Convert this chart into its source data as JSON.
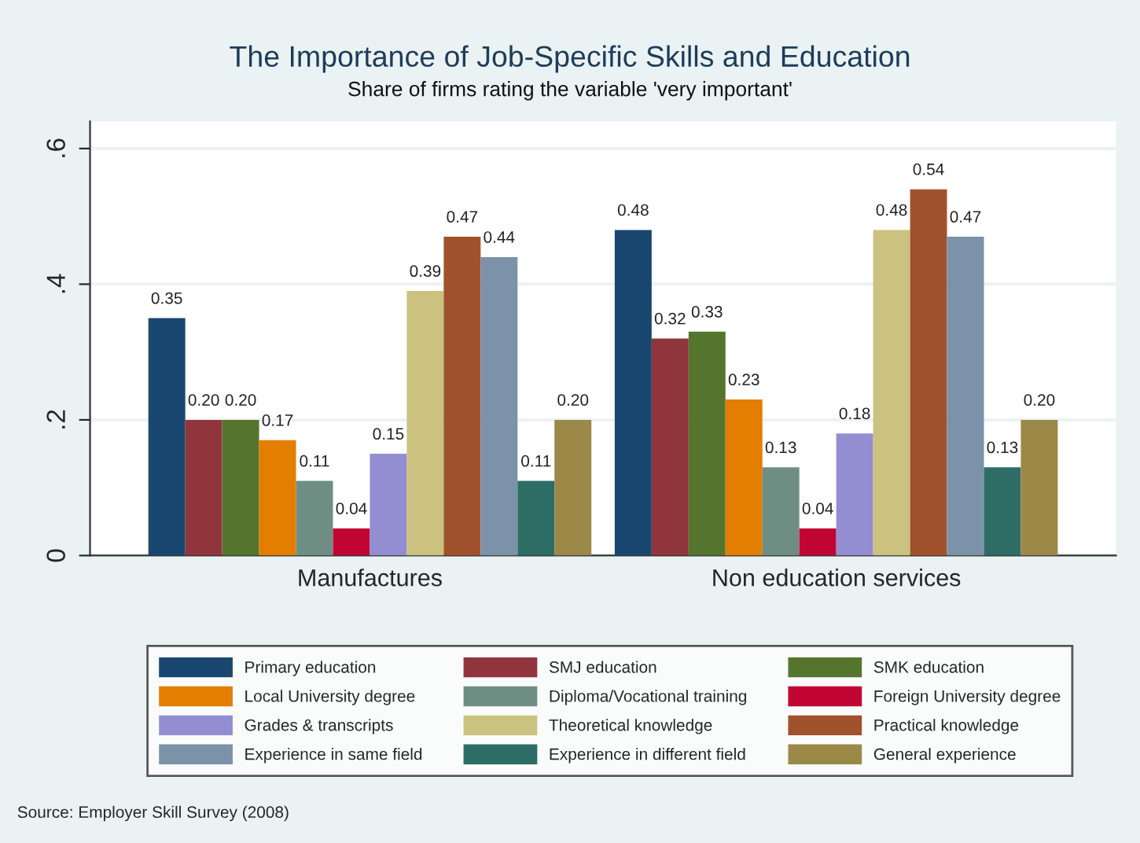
{
  "chart_data": {
    "type": "bar",
    "title": "The Importance of Job-Specific Skills and Education",
    "subtitle": "Share of firms rating the variable 'very important'",
    "categories": [
      "Manufactures",
      "Non education services"
    ],
    "series": [
      {
        "name": "Primary education",
        "color": "#1a476f",
        "values": [
          0.35,
          0.48
        ],
        "value_labels": [
          "0.35",
          "0.48"
        ]
      },
      {
        "name": "SMJ education",
        "color": "#90353b",
        "values": [
          0.2,
          0.32
        ],
        "value_labels": [
          "0.20",
          "0.32"
        ]
      },
      {
        "name": "SMK education",
        "color": "#55752f",
        "values": [
          0.2,
          0.33
        ],
        "value_labels": [
          "0.20",
          "0.33"
        ]
      },
      {
        "name": "Local University degree",
        "color": "#e37e00",
        "values": [
          0.17,
          0.23
        ],
        "value_labels": [
          "0.17",
          "0.23"
        ]
      },
      {
        "name": "Diploma/Vocational training",
        "color": "#6e8e84",
        "values": [
          0.11,
          0.13
        ],
        "value_labels": [
          "0.11",
          "0.13"
        ]
      },
      {
        "name": "Foreign University degree",
        "color": "#c10534",
        "values": [
          0.04,
          0.04
        ],
        "value_labels": [
          "0.04",
          "0.04"
        ]
      },
      {
        "name": "Grades & transcripts",
        "color": "#938dd2",
        "values": [
          0.15,
          0.18
        ],
        "value_labels": [
          "0.15",
          "0.18"
        ]
      },
      {
        "name": "Theoretical knowledge",
        "color": "#cac27e",
        "values": [
          0.39,
          0.48
        ],
        "value_labels": [
          "0.39",
          "0.48"
        ]
      },
      {
        "name": "Practical knowledge",
        "color": "#a0522d",
        "values": [
          0.47,
          0.54
        ],
        "value_labels": [
          "0.47",
          "0.54"
        ]
      },
      {
        "name": "Experience in same field",
        "color": "#7b92a8",
        "values": [
          0.44,
          0.47
        ],
        "value_labels": [
          "0.44",
          "0.47"
        ]
      },
      {
        "name": "Experience in different field",
        "color": "#2d6d66",
        "values": [
          0.11,
          0.13
        ],
        "value_labels": [
          "0.11",
          "0.13"
        ]
      },
      {
        "name": "General experience",
        "color": "#9c8847",
        "values": [
          0.2,
          0.2
        ],
        "value_labels": [
          "0.20",
          "0.20"
        ]
      }
    ],
    "ylim": [
      0,
      0.64
    ],
    "yticks": [
      {
        "value": 0,
        "label": "0"
      },
      {
        "value": 0.2,
        "label": ".2"
      },
      {
        "value": 0.4,
        "label": ".4"
      },
      {
        "value": 0.6,
        "label": ".6"
      }
    ],
    "grid": "y",
    "legend": "bottom",
    "annotations": [
      "Source: Employer Skill Survey (2008)"
    ]
  }
}
